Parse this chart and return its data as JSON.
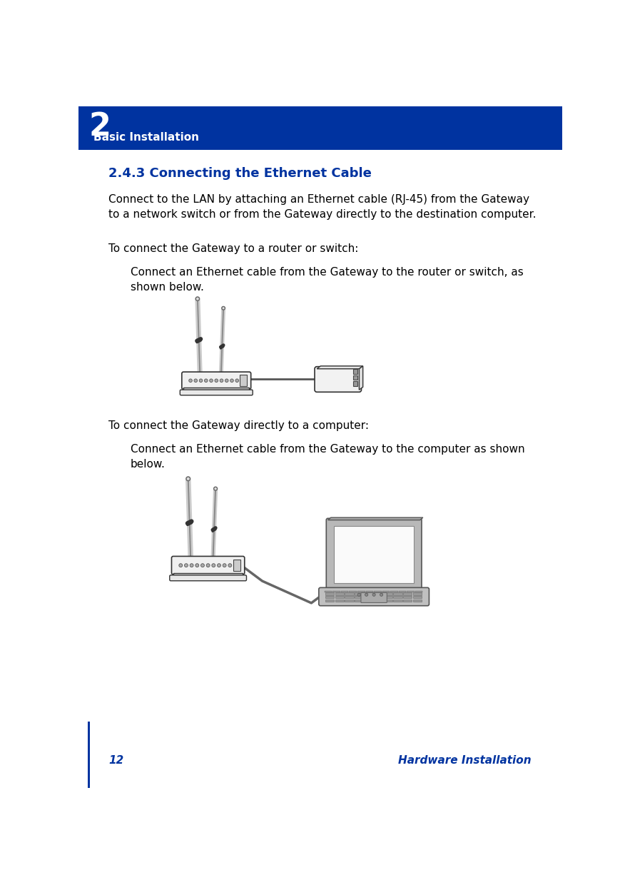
{
  "header_bg_color": "#0033A0",
  "header_chapter_num": "2",
  "header_chapter_title": "Basic Installation",
  "body_bg_color": "#FFFFFF",
  "title": "2.4.3 Connecting the Ethernet Cable",
  "para1": "Connect to the LAN by attaching an Ethernet cable (RJ-45) from the Gateway\nto a network switch or from the Gateway directly to the destination computer.",
  "para2": "To connect the Gateway to a router or switch:",
  "para2_indent": "Connect an Ethernet cable from the Gateway to the router or switch, as\nshown below.",
  "para3": "To connect the Gateway directly to a computer:",
  "para3_indent": "Connect an Ethernet cable from the Gateway to the computer as shown\nbelow.",
  "footer_page_num": "12",
  "footer_text": "Hardware Installation",
  "blue_color": "#0033A0",
  "text_color": "#000000",
  "left_bar_color": "#0033A0",
  "title_fontsize": 13,
  "body_fontsize": 11,
  "footer_fontsize": 11
}
